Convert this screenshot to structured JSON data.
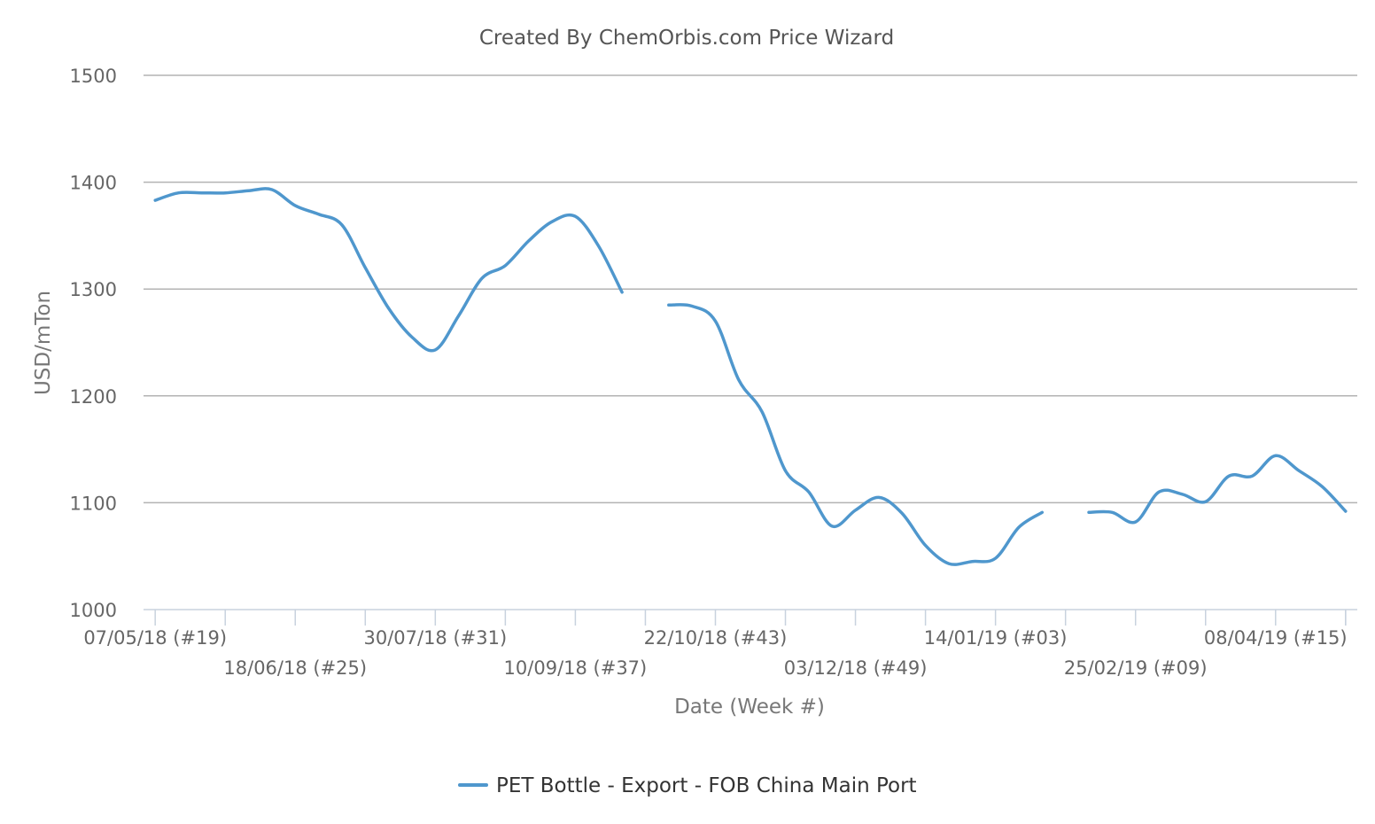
{
  "chart_data": {
    "type": "line",
    "title": "Created By ChemOrbis.com Price Wizard",
    "xlabel": "Date (Week #)",
    "ylabel": "USD/mTon",
    "ylim": [
      1000,
      1500
    ],
    "yticks": [
      1000,
      1100,
      1200,
      1300,
      1400,
      1500
    ],
    "grid": true,
    "legend_position": "bottom-center",
    "x_tick_labels": [
      {
        "week": 0,
        "label": "07/05/18 (#19)"
      },
      {
        "week": 6,
        "label": "18/06/18 (#25)"
      },
      {
        "week": 12,
        "label": "30/07/18 (#31)"
      },
      {
        "week": 18,
        "label": "10/09/18 (#37)"
      },
      {
        "week": 24,
        "label": "22/10/18 (#43)"
      },
      {
        "week": 30,
        "label": "03/12/18 (#49)"
      },
      {
        "week": 36,
        "label": "14/01/19 (#03)"
      },
      {
        "week": 42,
        "label": "25/02/19 (#09)"
      },
      {
        "week": 48,
        "label": "08/04/19 (#15)"
      }
    ],
    "x_minor_ticks_every": 3,
    "x_range_weeks": [
      -0.5,
      51.5
    ],
    "series": [
      {
        "name": "PET Bottle - Export - FOB China Main Port",
        "color": "#4f97cd",
        "segments": [
          [
            [
              0,
              1383
            ],
            [
              1,
              1390
            ],
            [
              2,
              1390
            ],
            [
              3,
              1390
            ],
            [
              4,
              1392
            ],
            [
              5,
              1393
            ],
            [
              6,
              1378
            ],
            [
              7,
              1370
            ],
            [
              8,
              1360
            ],
            [
              9,
              1320
            ],
            [
              10,
              1282
            ],
            [
              11,
              1255
            ],
            [
              12,
              1243
            ],
            [
              13,
              1275
            ],
            [
              14,
              1310
            ],
            [
              15,
              1322
            ],
            [
              16,
              1345
            ],
            [
              17,
              1363
            ],
            [
              18,
              1368
            ],
            [
              19,
              1340
            ],
            [
              20,
              1297
            ]
          ],
          [
            [
              22,
              1285
            ],
            [
              23,
              1284
            ],
            [
              24,
              1270
            ],
            [
              25,
              1215
            ],
            [
              26,
              1185
            ],
            [
              27,
              1130
            ],
            [
              28,
              1110
            ],
            [
              29,
              1078
            ],
            [
              30,
              1093
            ],
            [
              31,
              1105
            ],
            [
              32,
              1090
            ],
            [
              33,
              1060
            ],
            [
              34,
              1043
            ],
            [
              35,
              1045
            ],
            [
              36,
              1048
            ],
            [
              37,
              1077
            ],
            [
              38,
              1091
            ]
          ],
          [
            [
              40,
              1091
            ],
            [
              41,
              1091
            ],
            [
              42,
              1082
            ],
            [
              43,
              1110
            ],
            [
              44,
              1108
            ],
            [
              45,
              1101
            ],
            [
              46,
              1125
            ],
            [
              47,
              1125
            ],
            [
              48,
              1144
            ],
            [
              49,
              1130
            ],
            [
              50,
              1115
            ],
            [
              51,
              1092
            ]
          ]
        ]
      }
    ]
  }
}
